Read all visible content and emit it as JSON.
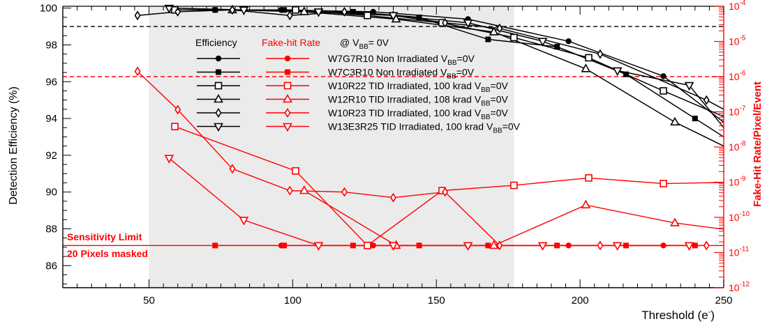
{
  "chart_data": {
    "type": "line",
    "xlabel": "Threshold (e",
    "xlabel_sup": "-",
    "ylabel_left": "Detection Efficiency (%)",
    "ylabel_right": "Fake-Hit Rate/Pixel/Event",
    "xlim": [
      20,
      250
    ],
    "ylim_left": [
      84.8,
      100.1
    ],
    "ylim_right_log10": [
      -12,
      -4
    ],
    "x_ticks": [
      "50",
      "100",
      "150",
      "200",
      "250"
    ],
    "y_ticks_left": [
      "86",
      "88",
      "90",
      "92",
      "94",
      "96",
      "98",
      "100"
    ],
    "y_ticks_right": [
      "10",
      "10",
      "10",
      "10",
      "10",
      "10",
      "10",
      "10",
      "10"
    ],
    "y_ticks_right_exp": [
      "-12",
      "-11",
      "-10",
      "-9",
      "-8",
      "-7",
      "-6",
      "-5",
      "-4"
    ],
    "shaded_region_x": [
      50,
      177
    ],
    "reference_efficiency": 99,
    "reference_fake_hit_log10": -6.0,
    "sensitivity_limit_log10": -10.8,
    "colors": {
      "efficiency": "#000000",
      "fake_hit": "#ff0000",
      "shade": "#ebebeb"
    },
    "legend": {
      "header_efficiency": "Efficiency",
      "header_fake_hit": "Fake-hit Rate",
      "header_condition": "@ V",
      "header_condition_sub": "BB",
      "header_condition_tail": "= 0V",
      "entries": [
        {
          "marker": "circle-filled",
          "text": "W7G7R10 Non Irradiated V",
          "sub": "BB",
          "tail": "=0V"
        },
        {
          "marker": "square-filled",
          "text": "W7C3R10 Non Irradiated V",
          "sub": "BB",
          "tail": "=0V"
        },
        {
          "marker": "square-open",
          "text": "W10R22 TID Irradiated, 100 krad V",
          "sub": "BB",
          "tail": "=0V"
        },
        {
          "marker": "triangle-up-open",
          "text": "W12R10 TID Irradiated, 108 krad V",
          "sub": "BB",
          "tail": "=0V"
        },
        {
          "marker": "diamond-open",
          "text": "W10R23 TID Irradiated, 100 krad V",
          "sub": "BB",
          "tail": "=0V"
        },
        {
          "marker": "triangle-down-open",
          "text": "W13E3R25 TID Irradiated, 100 krad V",
          "sub": "BB",
          "tail": "=0V"
        }
      ]
    },
    "annotations": [
      "Sensitivity Limit",
      "20 Pixels masked"
    ],
    "series": [
      {
        "name": "W7G7R10 Non Irradiated",
        "marker": "circle-filled",
        "efficiency": {
          "x": [
            73,
            96,
            128,
            161,
            196,
            229,
            250
          ],
          "y": [
            99.9,
            99.9,
            99.8,
            99.4,
            98.2,
            96.3,
            93.8
          ]
        },
        "fake_hit": {
          "x": [
            96,
            128,
            161,
            196,
            229
          ],
          "y_log10": [
            -10.8,
            -10.8,
            -10.8,
            -10.8,
            -10.8
          ]
        }
      },
      {
        "name": "W7C3R10 Non Irradiated",
        "marker": "square-filled",
        "efficiency": {
          "x": [
            73,
            97,
            121,
            144,
            168,
            192,
            216,
            240,
            250
          ],
          "y": [
            99.9,
            99.9,
            99.8,
            99.5,
            98.3,
            97.9,
            96.4,
            94.0,
            93.0
          ]
        },
        "fake_hit": {
          "x": [
            73,
            97,
            121,
            144,
            168,
            192,
            216,
            240
          ],
          "y_log10": [
            -10.8,
            -10.8,
            -10.8,
            -10.8,
            -10.8,
            -10.8,
            -10.8,
            -10.8
          ]
        }
      },
      {
        "name": "W10R22 TID Irradiated, 100 krad",
        "marker": "square-open",
        "efficiency": {
          "x": [
            59,
            101,
            126,
            152,
            177,
            203,
            229,
            250
          ],
          "y": [
            99.9,
            99.9,
            99.6,
            99.2,
            98.4,
            97.3,
            95.5,
            94.1
          ]
        },
        "fake_hit": {
          "x": [
            59,
            101,
            126,
            152,
            177,
            203,
            229,
            250
          ],
          "y_log10": [
            -7.42,
            -8.68,
            -10.8,
            -9.24,
            -9.09,
            -8.88,
            -9.04,
            -9.01
          ]
        }
      },
      {
        "name": "W12R10 TID Irradiated, 108 krad",
        "marker": "triangle-up-open",
        "efficiency": {
          "x": [
            79,
            104,
            136,
            170,
            202,
            233,
            250
          ],
          "y": [
            99.9,
            99.8,
            99.4,
            98.7,
            96.7,
            93.8,
            92.5
          ]
        },
        "fake_hit": {
          "x": [
            104,
            136,
            170,
            202,
            233,
            250
          ],
          "y_log10": [
            -9.24,
            -10.8,
            -10.8,
            -9.65,
            -10.16,
            -10.34
          ]
        }
      },
      {
        "name": "W10R23 TID Irradiated, 100 krad",
        "marker": "diamond-open",
        "efficiency": {
          "x": [
            46,
            60,
            79,
            99,
            118,
            135,
            153,
            172,
            207,
            244,
            250
          ],
          "y": [
            99.6,
            99.8,
            99.9,
            99.6,
            99.8,
            99.6,
            99.2,
            98.9,
            97.5,
            95.0,
            94.5
          ]
        },
        "fake_hit": {
          "x": [
            46,
            60,
            79,
            99,
            118,
            135,
            153,
            172,
            207,
            244
          ],
          "y_log10": [
            -5.85,
            -6.94,
            -8.62,
            -9.24,
            -9.28,
            -9.44,
            -9.28,
            -10.8,
            -10.8,
            -10.8
          ]
        }
      },
      {
        "name": "W13E3R25 TID Irradiated, 100 krad",
        "marker": "triangle-down-open",
        "efficiency": {
          "x": [
            57,
            83,
            109,
            135,
            161,
            187,
            213,
            238,
            250
          ],
          "y": [
            100.0,
            99.9,
            99.8,
            99.6,
            99.2,
            98.2,
            96.6,
            95.8,
            93.5
          ]
        },
        "fake_hit": {
          "x": [
            57,
            83,
            109,
            135,
            161,
            187,
            213,
            238
          ],
          "y_log10": [
            -8.32,
            -10.08,
            -10.8,
            -10.8,
            -10.8,
            -10.8,
            -10.8,
            -10.8
          ]
        }
      }
    ]
  }
}
